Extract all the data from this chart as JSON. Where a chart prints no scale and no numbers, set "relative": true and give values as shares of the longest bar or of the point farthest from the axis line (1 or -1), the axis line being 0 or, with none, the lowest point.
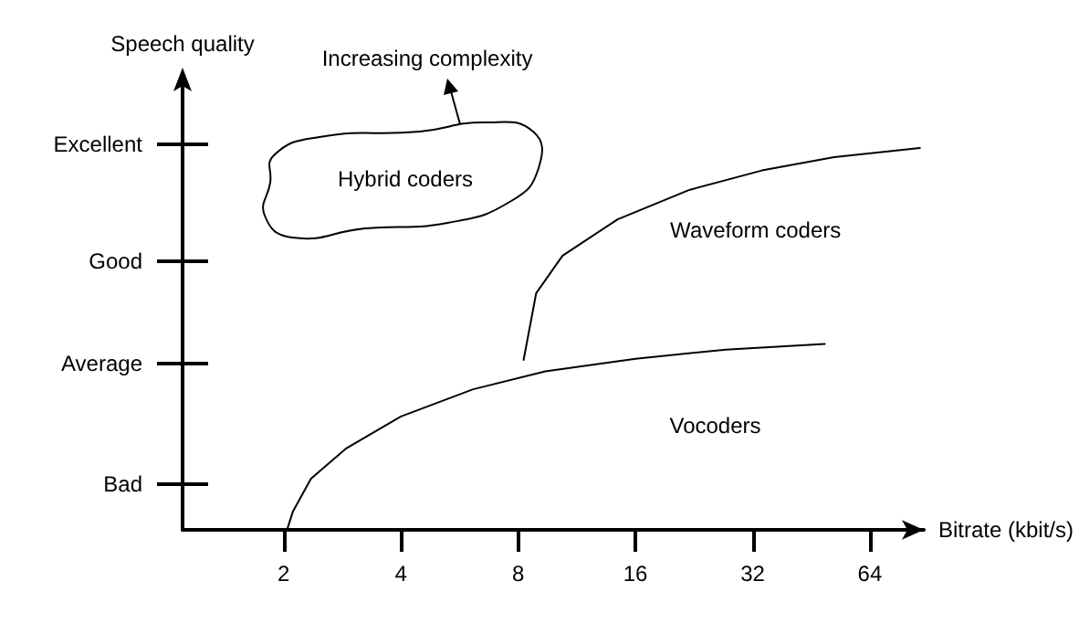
{
  "chart_data": {
    "type": "line",
    "xlabel": "Bitrate (kbit/s)",
    "ylabel": "Speech quality",
    "relative": true,
    "log": "x",
    "xlim": [
      1.1,
      88
    ],
    "xticks": [
      2,
      4,
      8,
      16,
      32,
      64
    ],
    "grid": false,
    "legend": false,
    "marker": "none",
    "line_style": "solid",
    "series": [
      {
        "name": "Vocoders",
        "color": "#000000",
        "x": [
          2.04,
          2.11,
          2.35,
          2.9,
          4.0,
          6.13,
          9.39,
          16,
          27.3,
          49
        ],
        "values": [
          0,
          0.047,
          0.134,
          0.214,
          0.297,
          0.368,
          0.415,
          0.448,
          0.472,
          0.487
        ]
      },
      {
        "name": "Waveform coders",
        "color": "#000000",
        "x": [
          8.26,
          8.9,
          10.4,
          14.4,
          22.0,
          33.8,
          51.8,
          86
        ],
        "values": [
          0.445,
          0.62,
          0.718,
          0.813,
          0.89,
          0.941,
          0.976,
          1
        ]
      }
    ],
    "annotations": [
      "Increasing complexity",
      "Hybrid coders",
      "Bad",
      "Average",
      "Good",
      "Excellent"
    ]
  }
}
